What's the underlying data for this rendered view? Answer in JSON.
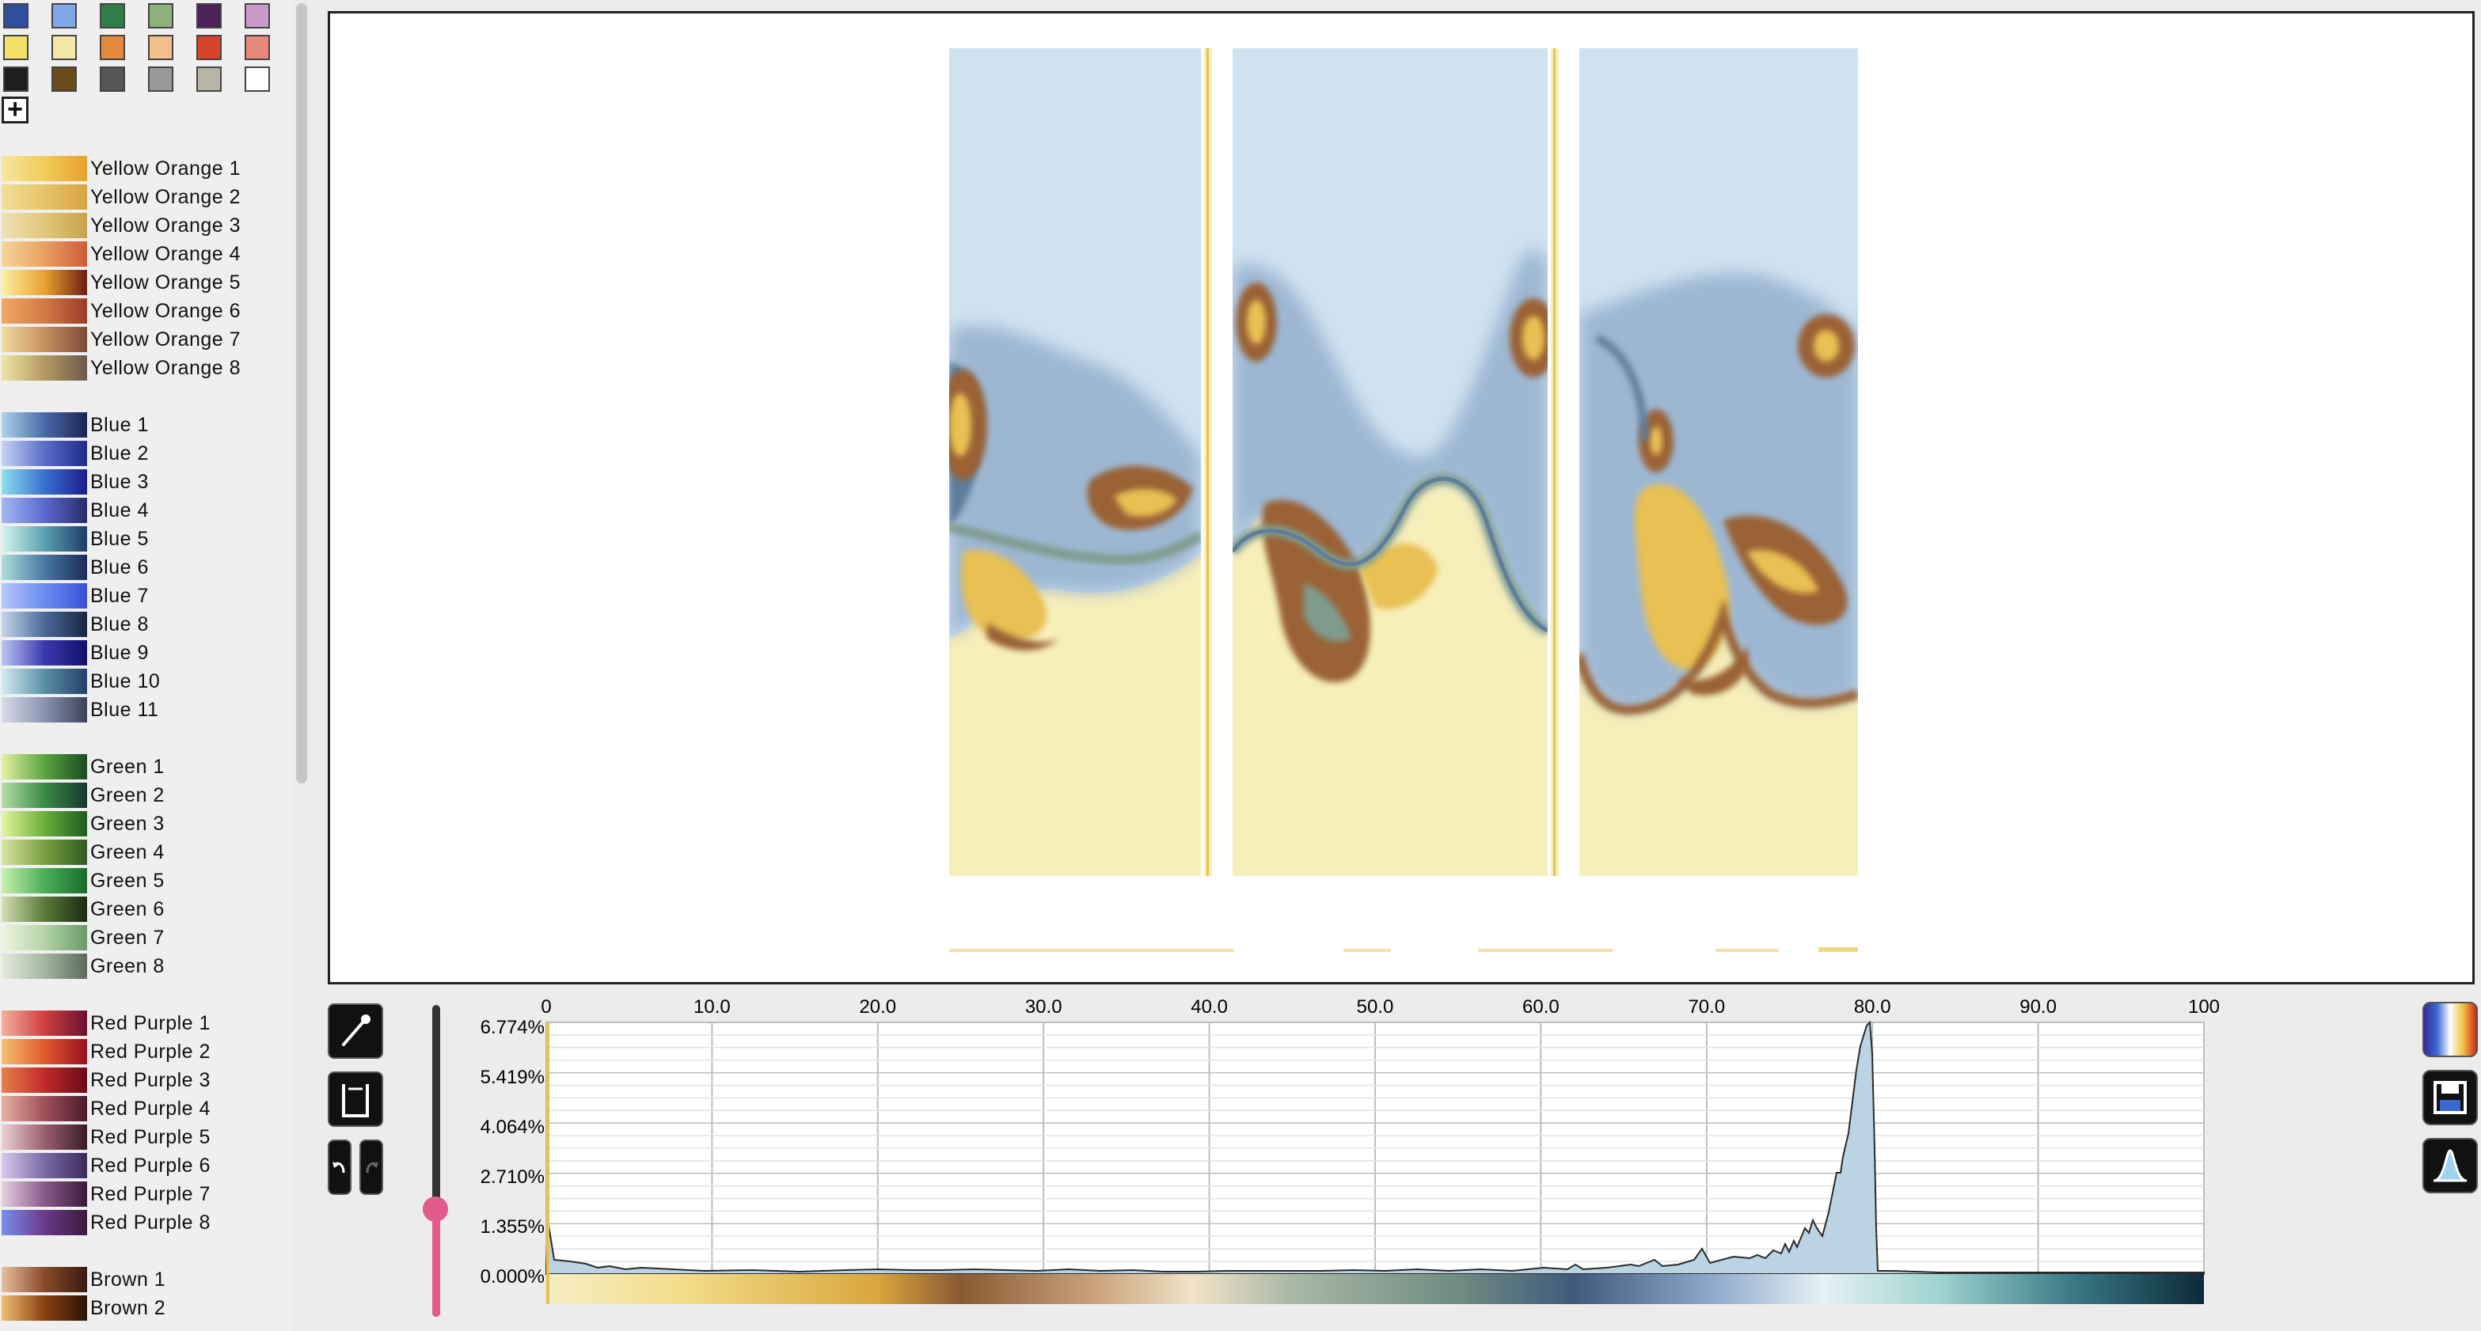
{
  "swatches": [
    [
      "#2d4f9e",
      "#7fa6e8",
      "#2f7d49",
      "#8fb27d",
      "#4a2158",
      "#c99ac9"
    ],
    [
      "#f3e068",
      "#f6e9a8",
      "#e48a3c",
      "#f2be8a",
      "#d8432b",
      "#e8897a"
    ],
    [
      "#1e1e1e",
      "#6a4b1a",
      "#555555",
      "#9a9a9a",
      "#b9b5a6",
      "#ffffff"
    ]
  ],
  "add_swatch_label": "+",
  "palettes": [
    {
      "label": "Yellow Orange 1",
      "colors": [
        "#f7e7a0",
        "#f2cb5a",
        "#e6a12c"
      ]
    },
    {
      "label": "Yellow Orange 2",
      "colors": [
        "#f2de9a",
        "#e8c46a",
        "#d6a440"
      ]
    },
    {
      "label": "Yellow Orange 3",
      "colors": [
        "#efe3b4",
        "#e2c67c",
        "#c9a24a"
      ]
    },
    {
      "label": "Yellow Orange 4",
      "colors": [
        "#f3d79a",
        "#e9a260",
        "#cf5a3a"
      ]
    },
    {
      "label": "Yellow Orange 5",
      "colors": [
        "#fbf1a0",
        "#e9a234",
        "#6b1d12"
      ]
    },
    {
      "label": "Yellow Orange 6",
      "colors": [
        "#f0a865",
        "#d37b45",
        "#9c3b2a"
      ]
    },
    {
      "label": "Yellow Orange 7",
      "colors": [
        "#f3dca0",
        "#c59060",
        "#7c4a38"
      ]
    },
    {
      "label": "Yellow Orange 8",
      "colors": [
        "#efe4a6",
        "#b59a62",
        "#6a5a4a"
      ]
    },
    {
      "label": "Blue 1",
      "colors": [
        "#aed3ea",
        "#4a6aa8",
        "#1a2450"
      ]
    },
    {
      "label": "Blue 2",
      "colors": [
        "#c6d4f2",
        "#5a6ec8",
        "#1e2a8a"
      ]
    },
    {
      "label": "Blue 3",
      "colors": [
        "#8fe0ee",
        "#3a70d0",
        "#1a1e8c"
      ]
    },
    {
      "label": "Blue 4",
      "colors": [
        "#a6b6f4",
        "#5a6ad0",
        "#2a2a6a"
      ]
    },
    {
      "label": "Blue 5",
      "colors": [
        "#d4f5ee",
        "#5aa2b0",
        "#1e3a6a"
      ]
    },
    {
      "label": "Blue 6",
      "colors": [
        "#aee0dc",
        "#4a78a4",
        "#1a2a58"
      ]
    },
    {
      "label": "Blue 7",
      "colors": [
        "#b8c8fa",
        "#6a8cf0",
        "#3a50d8"
      ]
    },
    {
      "label": "Blue 8",
      "colors": [
        "#c6d6ea",
        "#4a6a9a",
        "#1a2440"
      ]
    },
    {
      "label": "Blue 9",
      "colors": [
        "#bcc6f0",
        "#3a3ab0",
        "#10106a"
      ]
    },
    {
      "label": "Blue 10",
      "colors": [
        "#d4ecf0",
        "#5a90a6",
        "#24406a"
      ]
    },
    {
      "label": "Blue 11",
      "colors": [
        "#d8dce8",
        "#8a94b0",
        "#3a4258"
      ]
    },
    {
      "label": "Green 1",
      "colors": [
        "#e6f0a0",
        "#5aa640",
        "#1a4a20"
      ]
    },
    {
      "label": "Green 2",
      "colors": [
        "#b6e0a4",
        "#3a8a48",
        "#14382a"
      ]
    },
    {
      "label": "Green 3",
      "colors": [
        "#e6f5a0",
        "#6ab03a",
        "#1e5a1e"
      ]
    },
    {
      "label": "Green 4",
      "colors": [
        "#d8e6a0",
        "#7aa040",
        "#305a20"
      ]
    },
    {
      "label": "Green 5",
      "colors": [
        "#c8f0b0",
        "#4ab058",
        "#1a6a2a"
      ]
    },
    {
      "label": "Green 6",
      "colors": [
        "#d4e0b4",
        "#5a7a3a",
        "#1a2a10"
      ]
    },
    {
      "label": "Green 7",
      "colors": [
        "#eef5e0",
        "#b4d4a6",
        "#6a9a6a"
      ]
    },
    {
      "label": "Green 8",
      "colors": [
        "#e4ecdc",
        "#a4b8a0",
        "#5a6a5a"
      ]
    },
    {
      "label": "Red Purple 1",
      "colors": [
        "#f2b0a0",
        "#d04040",
        "#6a1030"
      ]
    },
    {
      "label": "Red Purple 2",
      "colors": [
        "#f6c070",
        "#e05a30",
        "#9a1020"
      ]
    },
    {
      "label": "Red Purple 3",
      "colors": [
        "#e8804a",
        "#c02a2a",
        "#6a0a1a"
      ]
    },
    {
      "label": "Red Purple 4",
      "colors": [
        "#e8b0a0",
        "#a0505a",
        "#4a1a2a"
      ]
    },
    {
      "label": "Red Purple 5",
      "colors": [
        "#ecd0d0",
        "#9a6070",
        "#3a1a2a"
      ]
    },
    {
      "label": "Red Purple 6",
      "colors": [
        "#d8c8ec",
        "#7a6aa8",
        "#3a2a5a"
      ]
    },
    {
      "label": "Red Purple 7",
      "colors": [
        "#e6d0e0",
        "#8a5a8a",
        "#3a1a3a"
      ]
    },
    {
      "label": "Red Purple 8",
      "colors": [
        "#7a8ef0",
        "#6a3a8a",
        "#3a1a3a"
      ]
    },
    {
      "label": "Brown 1",
      "colors": [
        "#e8c0a0",
        "#8a4a2a",
        "#3a1a10"
      ]
    },
    {
      "label": "Brown 2",
      "colors": [
        "#f0c070",
        "#8a4010",
        "#2a1404"
      ]
    }
  ],
  "histogram": {
    "x_ticks": [
      "0",
      "10.0",
      "20.0",
      "30.0",
      "40.0",
      "50.0",
      "60.0",
      "70.0",
      "80.0",
      "90.0",
      "100"
    ],
    "y_ticks": [
      "6.774%",
      "5.419%",
      "4.064%",
      "2.710%",
      "1.355%",
      "0.000%"
    ]
  },
  "tools": {
    "eyedropper_icon": "eyedropper-icon",
    "bucket_icon": "bucket-icon",
    "undo_icon": "undo-icon",
    "redo_icon": "redo-icon"
  },
  "right_buttons": [
    "colormap-icon",
    "save-icon",
    "histogram-icon"
  ],
  "colors": {
    "sand": "#f7efb9",
    "ice": "#cfe2ef",
    "steel": "#9db7d3",
    "slate": "#5f7e9c",
    "ochre": "#e8c052",
    "umber": "#9a6235",
    "teal": "#7f9b8c",
    "slider": "#e05a8c"
  }
}
